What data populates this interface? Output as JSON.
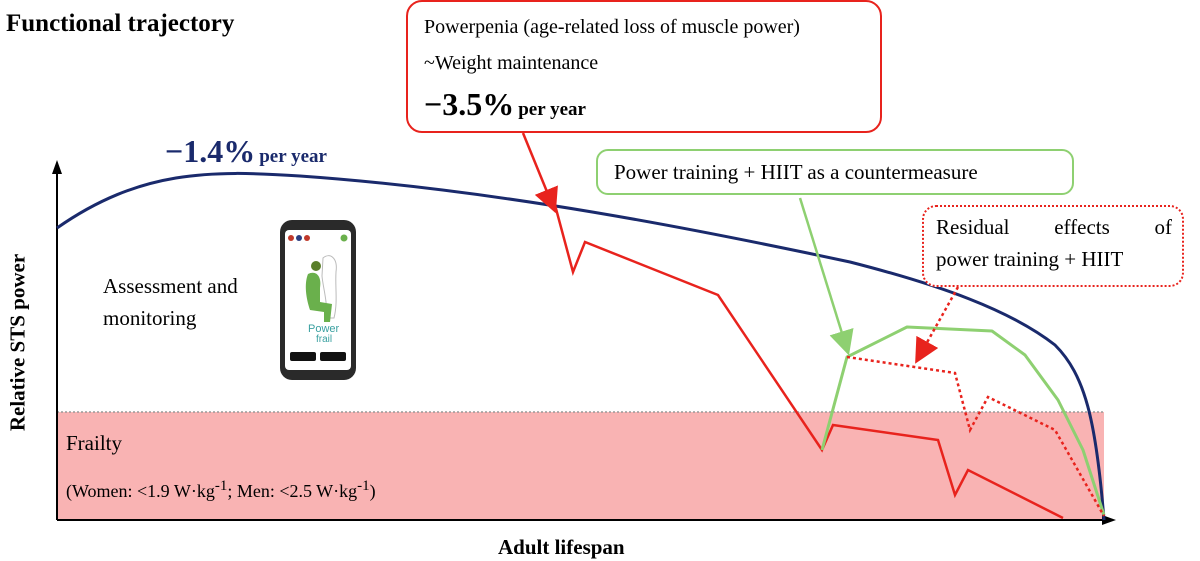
{
  "figure": {
    "title": "Functional trajectory",
    "y_axis_label": "Relative STS power",
    "x_axis_label": "Adult lifespan",
    "decline_rate_general": {
      "value": "−1.4%",
      "unit": "per year"
    },
    "powerpenia_box": {
      "line1": "Powerpenia (age-related loss of muscle power)",
      "line2": "~Weight maintenance",
      "rate_value": "−3.5%",
      "rate_unit": "per year"
    },
    "power_training_box": "Power training + HIIT as a countermeasure",
    "residual_box": {
      "line1_words": [
        "Residual",
        "effects",
        "of"
      ],
      "line2": "power training + HIIT"
    },
    "assessment_label": "Assessment and monitoring",
    "phone_app_name": "Power frail",
    "frailty_zone": {
      "label": "Frailty",
      "def_women": "(Women: <1.9 W·kg",
      "def_men": "; Men: <2.5 W·kg",
      "def_exp": "-1",
      "def_close": ")"
    },
    "colors": {
      "trajectory": "#1a2a6c",
      "powerpenia": "#e8231d",
      "training": "#8ed071",
      "frailty_fill": "#f9b3b3"
    }
  }
}
